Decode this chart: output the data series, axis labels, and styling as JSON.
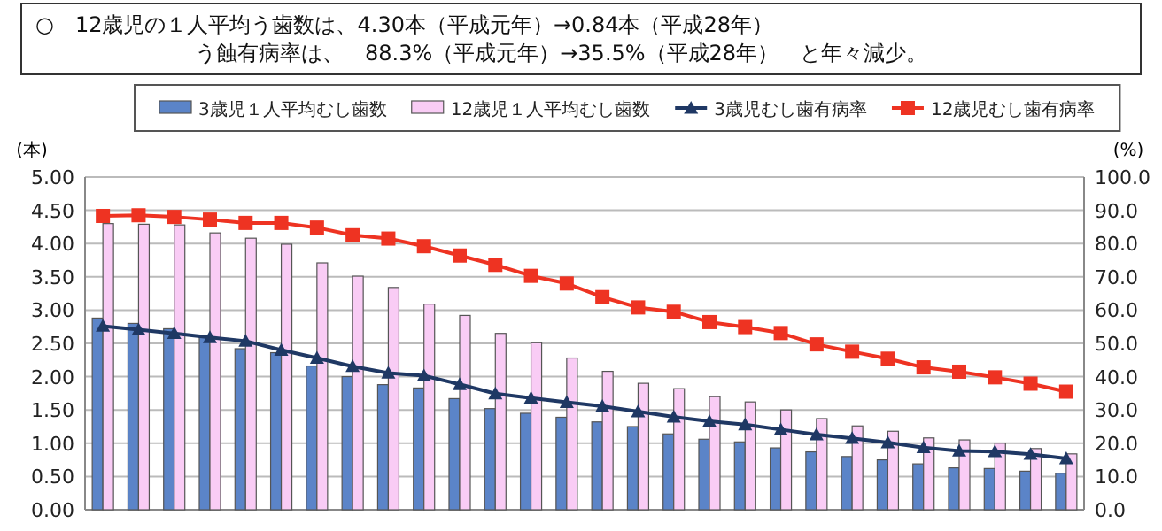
{
  "chart_data": {
    "type": "bar",
    "annotations": [
      "○　12歳児の１人平均う歯数は、4.30本（平成元年）→0.84本（平成28年）",
      "う蝕有病率は、　88.3%（平成元年）→35.5%（平成28年）　と年々減少。"
    ],
    "categories": [
      null,
      null,
      null,
      null,
      null,
      null,
      null,
      null,
      null,
      null,
      null,
      null,
      null,
      null,
      null,
      null,
      null,
      null,
      null,
      null,
      null,
      null,
      null,
      null,
      null,
      null,
      null,
      null
    ],
    "series": [
      {
        "name": "3歳児１人平均むし歯数",
        "color": "#5b84c8",
        "values": [
          2.88,
          2.8,
          2.72,
          2.6,
          2.42,
          2.36,
          2.16,
          2.0,
          1.88,
          1.83,
          1.67,
          1.52,
          1.45,
          1.39,
          1.32,
          1.25,
          1.14,
          1.06,
          1.02,
          0.93,
          0.87,
          0.8,
          0.75,
          0.69,
          0.63,
          0.62,
          0.58,
          0.55
        ]
      },
      {
        "name": "12歳児１人平均むし歯数",
        "color": "#f9ccf5",
        "values": [
          4.3,
          4.29,
          4.28,
          4.16,
          4.08,
          3.99,
          3.71,
          3.51,
          3.34,
          3.09,
          2.92,
          2.65,
          2.51,
          2.28,
          2.08,
          1.9,
          1.82,
          1.7,
          1.62,
          1.5,
          1.37,
          1.26,
          1.18,
          1.08,
          1.05,
          1.0,
          0.92,
          0.84
        ]
      },
      {
        "name": "3歳児むし歯有病率",
        "type": "line",
        "axis": "y2",
        "marker": "triangle",
        "color": "#1f3864",
        "values": [
          55.2,
          54.1,
          53.0,
          51.8,
          50.7,
          48.0,
          45.6,
          43.1,
          41.1,
          40.3,
          37.7,
          34.9,
          33.6,
          32.3,
          31.1,
          29.5,
          27.9,
          26.6,
          25.6,
          24.1,
          22.6,
          21.5,
          20.2,
          18.7,
          17.7,
          17.5,
          16.7,
          15.4
        ]
      },
      {
        "name": "12歳児むし歯有病率",
        "type": "line",
        "axis": "y2",
        "marker": "square",
        "color": "#ee3322",
        "values": [
          88.3,
          88.5,
          88.0,
          87.2,
          86.2,
          86.2,
          84.8,
          82.5,
          81.5,
          79.2,
          76.4,
          73.6,
          70.3,
          68.0,
          63.9,
          60.8,
          59.5,
          56.4,
          54.9,
          53.1,
          49.7,
          47.5,
          45.4,
          42.8,
          41.5,
          39.8,
          37.9,
          35.5
        ]
      }
    ],
    "ylabel": "(本)",
    "y2label": "(%)",
    "ylim": [
      0,
      5
    ],
    "yticks": [
      {
        "value": 0,
        "label": "0.00"
      },
      {
        "value": 0.5,
        "label": "0.50"
      },
      {
        "value": 1,
        "label": "1.00"
      },
      {
        "value": 1.5,
        "label": "1.50"
      },
      {
        "value": 2,
        "label": "2.00"
      },
      {
        "value": 2.5,
        "label": "2.50"
      },
      {
        "value": 3,
        "label": "3.00"
      },
      {
        "value": 3.5,
        "label": "3.50"
      },
      {
        "value": 4,
        "label": "4.00"
      },
      {
        "value": 4.5,
        "label": "4.50"
      },
      {
        "value": 5,
        "label": "5.00"
      }
    ],
    "y2lim": [
      0,
      100
    ],
    "y2ticks": [
      {
        "value": 0,
        "label": "0.0"
      },
      {
        "value": 10,
        "label": "10.0"
      },
      {
        "value": 20,
        "label": "20.0"
      },
      {
        "value": 30,
        "label": "30.0"
      },
      {
        "value": 40,
        "label": "40.0"
      },
      {
        "value": 50,
        "label": "50.0"
      },
      {
        "value": 60,
        "label": "60.0"
      },
      {
        "value": 70,
        "label": "70.0"
      },
      {
        "value": 80,
        "label": "80.0"
      },
      {
        "value": 90,
        "label": "90.0"
      },
      {
        "value": 100,
        "label": "100.0"
      }
    ],
    "grid": "y",
    "legend": "top"
  }
}
